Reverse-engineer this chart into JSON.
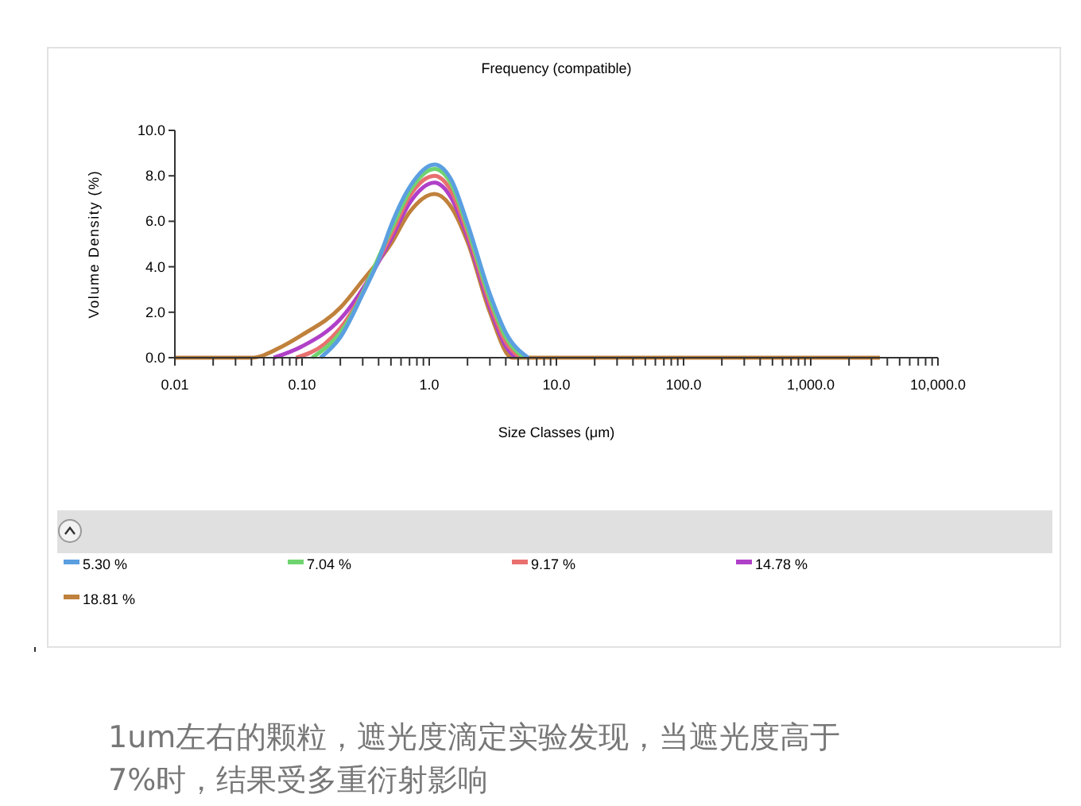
{
  "chart_data": {
    "type": "line",
    "title": "Frequency (compatible)",
    "xlabel": "Size Classes (μm)",
    "ylabel": "Volume Density (%)",
    "log": "x",
    "xlim": [
      0.01,
      10000
    ],
    "ylim": [
      0,
      10
    ],
    "xticks": [
      {
        "value": 0.01,
        "label": "0.01"
      },
      {
        "value": 0.02,
        "label": null
      },
      {
        "value": 0.03,
        "label": null
      },
      {
        "value": 0.04,
        "label": null
      },
      {
        "value": 0.05,
        "label": null
      },
      {
        "value": 0.06,
        "label": null
      },
      {
        "value": 0.07,
        "label": null
      },
      {
        "value": 0.08,
        "label": null
      },
      {
        "value": 0.09,
        "label": null
      },
      {
        "value": 0.1,
        "label": "0.10"
      },
      {
        "value": 0.2,
        "label": null
      },
      {
        "value": 0.3,
        "label": null
      },
      {
        "value": 0.4,
        "label": null
      },
      {
        "value": 0.5,
        "label": null
      },
      {
        "value": 0.6,
        "label": null
      },
      {
        "value": 0.7,
        "label": null
      },
      {
        "value": 0.8,
        "label": null
      },
      {
        "value": 0.9,
        "label": null
      },
      {
        "value": 1,
        "label": "1.0"
      },
      {
        "value": 2,
        "label": null
      },
      {
        "value": 3,
        "label": null
      },
      {
        "value": 4,
        "label": null
      },
      {
        "value": 5,
        "label": null
      },
      {
        "value": 6,
        "label": null
      },
      {
        "value": 7,
        "label": null
      },
      {
        "value": 8,
        "label": null
      },
      {
        "value": 9,
        "label": null
      },
      {
        "value": 10,
        "label": "10.0"
      },
      {
        "value": 20,
        "label": null
      },
      {
        "value": 30,
        "label": null
      },
      {
        "value": 40,
        "label": null
      },
      {
        "value": 50,
        "label": null
      },
      {
        "value": 60,
        "label": null
      },
      {
        "value": 70,
        "label": null
      },
      {
        "value": 80,
        "label": null
      },
      {
        "value": 90,
        "label": null
      },
      {
        "value": 100,
        "label": "100.0"
      },
      {
        "value": 200,
        "label": null
      },
      {
        "value": 300,
        "label": null
      },
      {
        "value": 400,
        "label": null
      },
      {
        "value": 500,
        "label": null
      },
      {
        "value": 600,
        "label": null
      },
      {
        "value": 700,
        "label": null
      },
      {
        "value": 800,
        "label": null
      },
      {
        "value": 900,
        "label": null
      },
      {
        "value": 1000,
        "label": "1,000.0"
      },
      {
        "value": 2000,
        "label": null
      },
      {
        "value": 3000,
        "label": null
      },
      {
        "value": 4000,
        "label": null
      },
      {
        "value": 5000,
        "label": null
      },
      {
        "value": 6000,
        "label": null
      },
      {
        "value": 7000,
        "label": null
      },
      {
        "value": 8000,
        "label": null
      },
      {
        "value": 9000,
        "label": null
      },
      {
        "value": 10000,
        "label": "10,000.0"
      }
    ],
    "yticks": [
      {
        "value": 0,
        "label": "0.0"
      },
      {
        "value": 2,
        "label": "2.0"
      },
      {
        "value": 4,
        "label": "4.0"
      },
      {
        "value": 6,
        "label": "6.0"
      },
      {
        "value": 8,
        "label": "8.0"
      },
      {
        "value": 10,
        "label": "10.0"
      }
    ],
    "series": [
      {
        "name": "5.30 %",
        "color": "#5b9fe0",
        "x": [
          0.14,
          0.2,
          0.3,
          0.4,
          0.5,
          0.7,
          1.1,
          1.5,
          2,
          3,
          4,
          6
        ],
        "values": [
          0,
          0.9,
          2.8,
          4.3,
          5.8,
          7.5,
          8.5,
          7.8,
          5.9,
          2.8,
          1.1,
          0
        ]
      },
      {
        "name": "7.04 %",
        "color": "#6fd46f",
        "x": [
          0.12,
          0.2,
          0.5,
          0.7,
          1.1,
          1.5,
          2,
          3,
          4,
          5.6
        ],
        "values": [
          0,
          1.1,
          5.6,
          7.3,
          8.3,
          7.6,
          5.7,
          2.6,
          0.9,
          0
        ]
      },
      {
        "name": "9.17 %",
        "color": "#e8706f",
        "x": [
          0.09,
          0.15,
          0.2,
          0.5,
          0.7,
          1.1,
          1.5,
          2,
          3,
          4,
          5.2
        ],
        "values": [
          0,
          0.6,
          1.3,
          5.4,
          7.1,
          8.0,
          7.3,
          5.5,
          2.4,
          0.7,
          0
        ]
      },
      {
        "name": "14.78 %",
        "color": "#b040c8",
        "x": [
          0.06,
          0.1,
          0.2,
          0.5,
          0.7,
          1.1,
          1.5,
          2,
          3,
          4,
          4.8
        ],
        "values": [
          0,
          0.5,
          1.7,
          5.2,
          6.8,
          7.7,
          7.0,
          5.3,
          2.2,
          0.5,
          0
        ]
      },
      {
        "name": "18.81 %",
        "color": "#c0813c",
        "x": [
          0.01,
          0.04,
          0.07,
          0.1,
          0.2,
          0.3,
          0.5,
          0.7,
          1.1,
          1.5,
          2,
          3,
          4.5,
          10,
          100,
          1000,
          3500
        ],
        "values": [
          0,
          0,
          0.5,
          1.0,
          2.2,
          3.4,
          5.0,
          6.4,
          7.2,
          6.6,
          5.1,
          2.0,
          0,
          0,
          0,
          0,
          0
        ]
      }
    ],
    "grid": false,
    "legend": "bottom",
    "marker": "none",
    "line_style": "solid",
    "annotations": [
      "1um左右的颗粒，遮光度滴定实验发现，当遮光度高于7%时，结果受多重衍射影响"
    ]
  }
}
